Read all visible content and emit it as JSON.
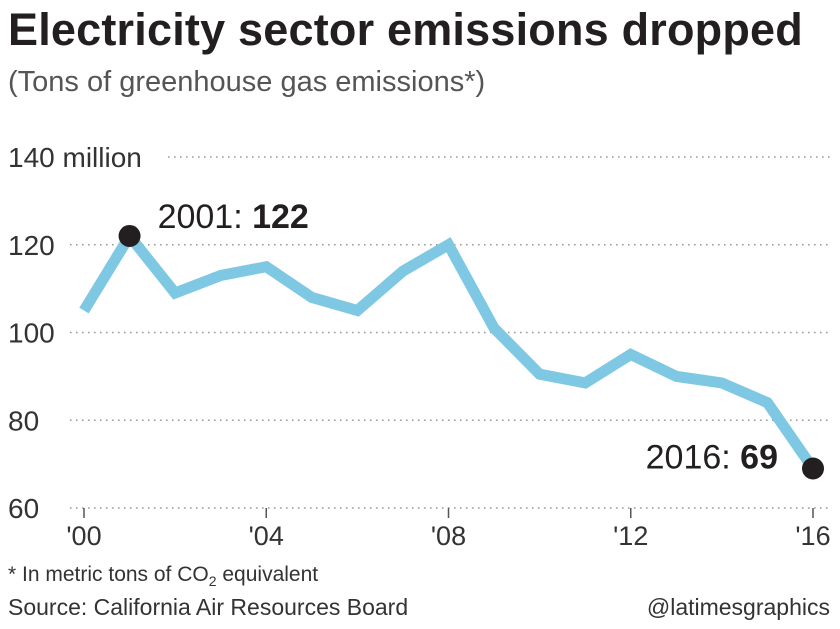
{
  "title": "Electricity sector emissions dropped",
  "subtitle": "(Tons of greenhouse gas emissions*)",
  "footnote": {
    "prefix": "* In metric tons of CO",
    "subscript": "2",
    "suffix": " equivalent"
  },
  "source": "Source: California Air Resources Board",
  "credit": "@latimesgraphics",
  "colors": {
    "line": "#7ec8e3",
    "dot": "#231f20",
    "grid": "#9a9a9a",
    "text": "#231f20"
  },
  "chart_data": {
    "type": "line",
    "title": "Electricity sector emissions dropped",
    "subtitle": "(Tons of greenhouse gas emissions*)",
    "xlabel": "",
    "ylabel": "",
    "x": [
      2000,
      2001,
      2002,
      2003,
      2004,
      2005,
      2006,
      2007,
      2008,
      2009,
      2010,
      2011,
      2012,
      2013,
      2014,
      2015,
      2016
    ],
    "series": [
      {
        "name": "Electricity sector emissions",
        "values": [
          105,
          122,
          109,
          113,
          115,
          108,
          105,
          114,
          120,
          101,
          90.5,
          88.5,
          95,
          90,
          88.5,
          84,
          69
        ]
      }
    ],
    "ylim": [
      60,
      140
    ],
    "yticks": [
      60,
      80,
      100,
      120,
      140
    ],
    "ytick_labels": [
      "60",
      "80",
      "100",
      "120",
      "140 million"
    ],
    "xticks": [
      2000,
      2004,
      2008,
      2012,
      2016
    ],
    "xtick_labels": [
      "'00",
      "'04",
      "'08",
      "'12",
      "'16"
    ],
    "grid": true,
    "annotations": [
      {
        "x": 2001,
        "y": 122,
        "label": "2001:",
        "value": "122"
      },
      {
        "x": 2016,
        "y": 69,
        "label": "2016:",
        "value": "69"
      }
    ]
  }
}
